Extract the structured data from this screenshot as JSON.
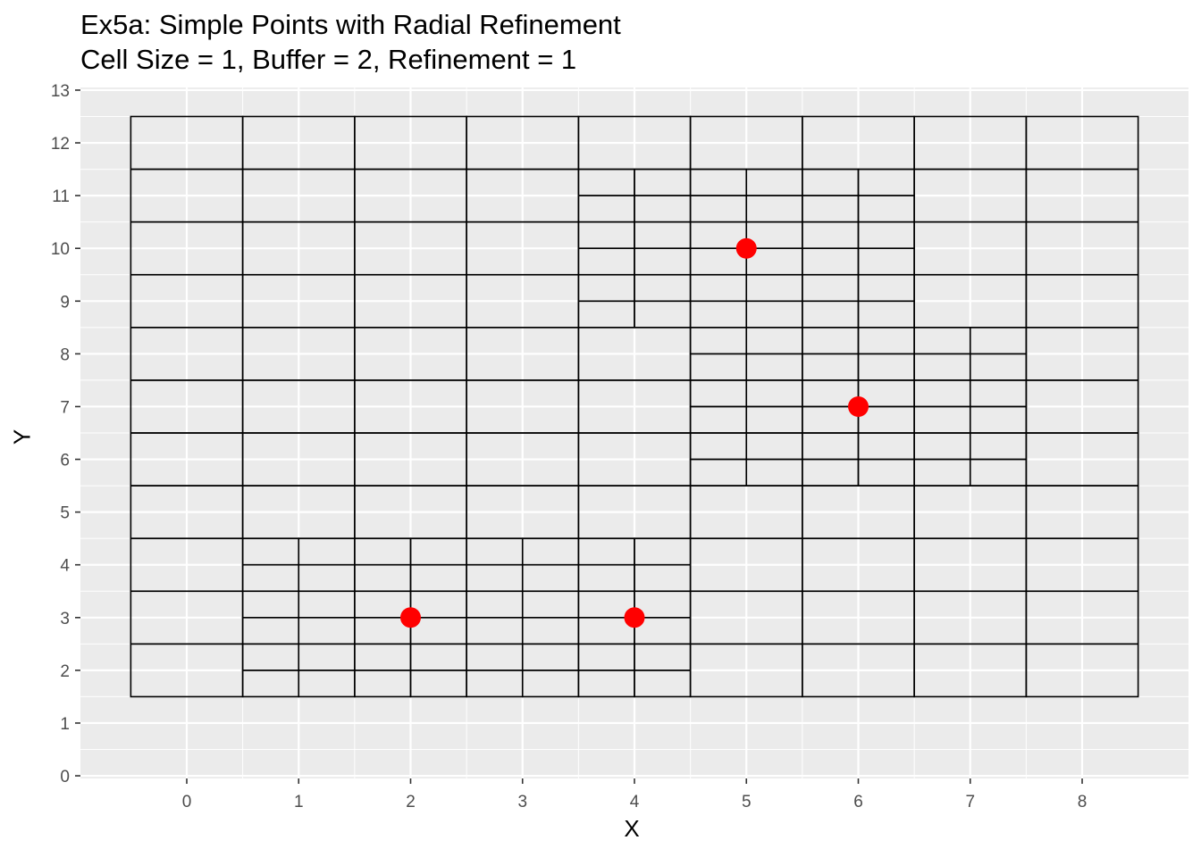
{
  "chart_data": {
    "type": "scatter",
    "title": "Ex5a: Simple Points with Radial Refinement",
    "subtitle": "Cell Size = 1, Buffer = 2, Refinement = 1",
    "xlabel": "X",
    "ylabel": "Y",
    "xlim": [
      -0.95,
      8.95
    ],
    "ylim": [
      -0.05,
      13.05
    ],
    "x_ticks": [
      0,
      1,
      2,
      3,
      4,
      5,
      6,
      7,
      8
    ],
    "y_ticks": [
      0,
      1,
      2,
      3,
      4,
      5,
      6,
      7,
      8,
      9,
      10,
      11,
      12,
      13
    ],
    "grid": true,
    "panel_color": "#EBEBEB",
    "grid_color": "#FFFFFF",
    "cell_outline_color": "#000000",
    "point_color": "#FF0000",
    "points": [
      {
        "x": 2,
        "y": 3
      },
      {
        "x": 4,
        "y": 3
      },
      {
        "x": 5,
        "y": 10
      },
      {
        "x": 6,
        "y": 7
      }
    ],
    "grid_cells": {
      "base_cell_size": 1,
      "x_range": [
        -0.5,
        8.5
      ],
      "y_range": [
        1.5,
        12.5
      ],
      "refined_blocks": [
        {
          "x": [
            0.5,
            4.5
          ],
          "y": [
            1.5,
            4.5
          ],
          "refinement": 1
        },
        {
          "x": [
            3.5,
            6.5
          ],
          "y": [
            8.5,
            11.5
          ],
          "refinement": 1
        },
        {
          "x": [
            4.5,
            7.5
          ],
          "y": [
            5.5,
            8.5
          ],
          "refinement": 1
        }
      ]
    }
  }
}
